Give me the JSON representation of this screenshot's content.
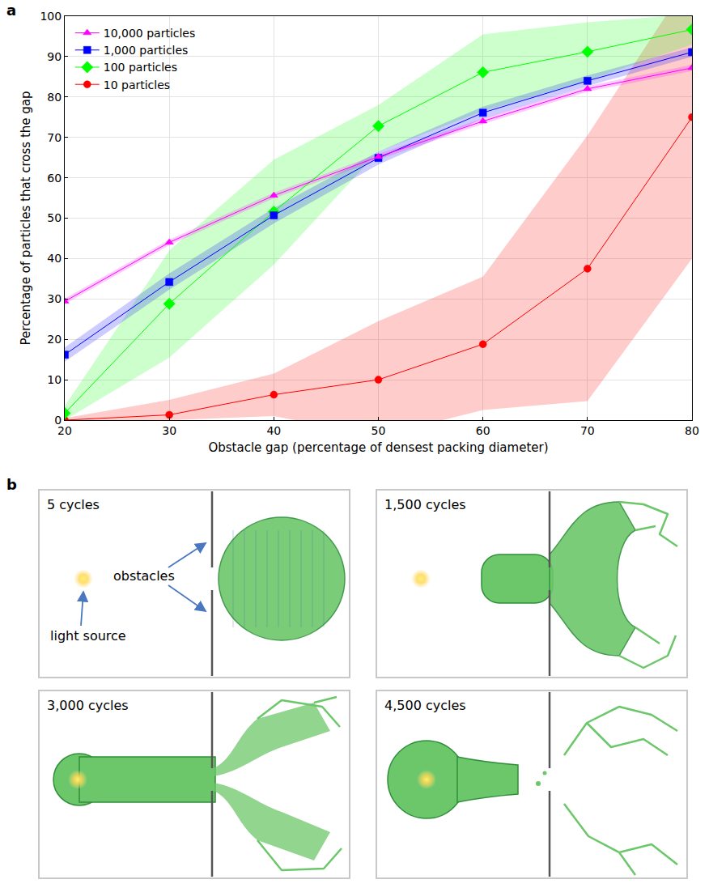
{
  "chart_data": {
    "type": "line",
    "x_label": "Obstacle gap (percentage of densest packing diameter)",
    "y_label": "Percentage of particles that cross the gap",
    "x": [
      20,
      30,
      40,
      50,
      60,
      70,
      80
    ],
    "series": [
      {
        "name": "10 particles",
        "color": "#ff0000",
        "marker": "circle",
        "line_style": "solid",
        "values": [
          0,
          1.3,
          6.3,
          10,
          18.8,
          37.5,
          75
        ],
        "lower": [
          0,
          0,
          1,
          -4,
          2.5,
          4.7,
          40
        ],
        "upper": [
          0.5,
          5,
          11.5,
          24.5,
          35.5,
          70.5,
          110
        ]
      },
      {
        "name": "100 particles",
        "color": "#00ff00",
        "marker": "diamond",
        "line_style": "solid",
        "values": [
          1.7,
          28.8,
          51.6,
          72.8,
          86.1,
          91.2,
          96.7
        ],
        "lower": [
          0,
          15.5,
          38.5,
          66.5,
          76.5,
          84,
          93
        ],
        "upper": [
          3.5,
          42,
          64.5,
          78,
          95.5,
          98.5,
          100.5
        ]
      },
      {
        "name": "1,000 particles",
        "color": "#0000ff",
        "marker": "square",
        "line_style": "solid",
        "values": [
          16.2,
          34.2,
          50.7,
          64.9,
          76.1,
          84,
          91.1
        ],
        "lower": [
          14.5,
          32.3,
          48.7,
          63.3,
          74.6,
          82.7,
          90
        ],
        "upper": [
          18,
          36.3,
          52.5,
          66.5,
          77.6,
          85.3,
          92.3
        ]
      },
      {
        "name": "10,000 particles",
        "color": "#ff00ff",
        "marker": "triangle-up",
        "line_style": "solid",
        "values": [
          29.4,
          44,
          55.6,
          65.2,
          74,
          82,
          87.2
        ],
        "lower": [
          28.7,
          43.3,
          54.9,
          64.5,
          73.3,
          81.3,
          86.4
        ],
        "upper": [
          30.1,
          44.7,
          56.3,
          65.9,
          74.7,
          82.7,
          88
        ]
      }
    ],
    "xlim": [
      20,
      80
    ],
    "xticks": [
      20,
      30,
      40,
      50,
      60,
      70,
      80
    ],
    "ylim": [
      0,
      100
    ],
    "yticks": [
      0,
      10,
      20,
      30,
      40,
      50,
      60,
      70,
      80,
      90,
      100
    ],
    "grid": true,
    "legend": "upper left"
  },
  "panel_a_label": "a",
  "panel_b": {
    "label": "b",
    "snapshots": [
      "5 cycles",
      "1,500 cycles",
      "3,000 cycles",
      "4,500 cycles"
    ],
    "callouts": {
      "obstacles": "obstacles",
      "light_source": "light source"
    }
  }
}
